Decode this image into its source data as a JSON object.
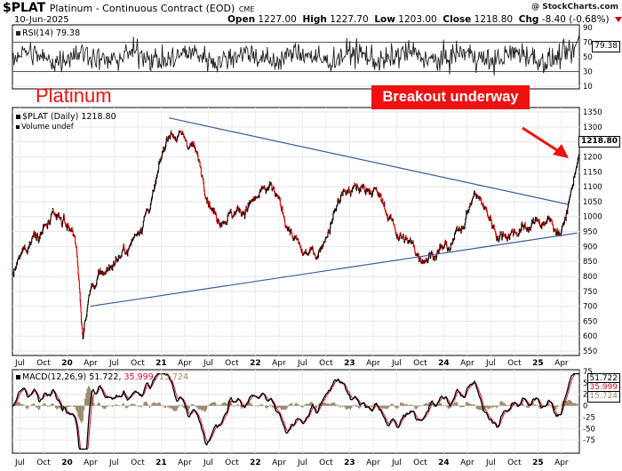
{
  "header": {
    "symbol": "$PLAT",
    "description": "Platinum - Continuous Contract (EOD)",
    "exchange": "CME",
    "credit": "@ StockCharts.com",
    "date": "10-Jun-2025",
    "open_label": "Open",
    "open_value": "1227.00",
    "high_label": "High",
    "high_value": "1227.70",
    "low_label": "Low",
    "low_value": "1203.00",
    "close_label": "Close",
    "close_value": "1218.80",
    "chg_label": "Chg",
    "chg_value": "-8.40 (-0.68%)"
  },
  "annotations": {
    "platinum": "Platinum",
    "breakout": "Breakout underway"
  },
  "colors": {
    "up": "#000000",
    "down": "#cc0000",
    "trendline": "#3b5b9c",
    "rsi_line": "#222222",
    "macd_line": "#000000",
    "signal_line": "#cc1133",
    "histogram": "#9a8a6a",
    "annotation": "#ee1111"
  },
  "chart_data": [
    {
      "type": "line",
      "title": "RSI(14)",
      "legend": "RSI(14) 79.38",
      "last_value": "79.38",
      "ylim": [
        10,
        90
      ],
      "yticks": [
        "90",
        "70",
        "50",
        "30",
        "10"
      ],
      "reference_lines": [
        30,
        70
      ],
      "pill_value": "79.38"
    },
    {
      "type": "line",
      "title": "$PLAT (Daily) 1218.80",
      "legend": [
        "$PLAT (Daily) 1218.80",
        "Volume undef"
      ],
      "ylim": [
        550,
        1350
      ],
      "yticks": [
        "1350",
        "1300",
        "1250",
        "1200",
        "1150",
        "1100",
        "1050",
        "1000",
        "950",
        "900",
        "850",
        "800",
        "750",
        "700",
        "650",
        "600",
        "550"
      ],
      "x_labels": [
        "Jul",
        "Oct",
        "20",
        "Apr",
        "Jul",
        "Oct",
        "21",
        "Apr",
        "Jul",
        "Oct",
        "22",
        "Apr",
        "Jul",
        "Oct",
        "23",
        "Apr",
        "Jul",
        "Oct",
        "24",
        "Apr",
        "Jul",
        "Oct",
        "25",
        "Apr"
      ],
      "last_price": "1218.80",
      "key_points": [
        {
          "date": "2019-06",
          "price": 800
        },
        {
          "date": "2019-09",
          "price": 960
        },
        {
          "date": "2019-12",
          "price": 980
        },
        {
          "date": "2020-02",
          "price": 950
        },
        {
          "date": "2020-03",
          "price": 600
        },
        {
          "date": "2020-04",
          "price": 760
        },
        {
          "date": "2020-07",
          "price": 850
        },
        {
          "date": "2020-09",
          "price": 900
        },
        {
          "date": "2020-12",
          "price": 1070
        },
        {
          "date": "2021-02",
          "price": 1290
        },
        {
          "date": "2021-05",
          "price": 1240
        },
        {
          "date": "2021-08",
          "price": 1000
        },
        {
          "date": "2021-11",
          "price": 1020
        },
        {
          "date": "2022-03",
          "price": 1090
        },
        {
          "date": "2022-07",
          "price": 870
        },
        {
          "date": "2022-09",
          "price": 880
        },
        {
          "date": "2022-12",
          "price": 1080
        },
        {
          "date": "2023-04",
          "price": 1100
        },
        {
          "date": "2023-07",
          "price": 950
        },
        {
          "date": "2023-10",
          "price": 870
        },
        {
          "date": "2024-02",
          "price": 900
        },
        {
          "date": "2024-05",
          "price": 1080
        },
        {
          "date": "2024-08",
          "price": 940
        },
        {
          "date": "2024-11",
          "price": 960
        },
        {
          "date": "2025-02",
          "price": 990
        },
        {
          "date": "2025-04",
          "price": 950
        },
        {
          "date": "2025-05",
          "price": 1050
        },
        {
          "date": "2025-06-10",
          "price": 1218.8
        }
      ],
      "trendlines": [
        {
          "from": {
            "date": "2021-02",
            "price": 1330
          },
          "to": {
            "date": "2025-05",
            "price": 1040
          }
        },
        {
          "from": {
            "date": "2020-04",
            "price": 700
          },
          "to": {
            "date": "2025-06",
            "price": 945
          }
        }
      ]
    },
    {
      "type": "line",
      "title": "MACD(12,26,9)",
      "legend_name": "MACD(12,26,9)",
      "values": {
        "macd": "51.722",
        "signal": "35.999",
        "histogram": "15.724"
      },
      "ylim": [
        -100,
        75
      ],
      "yticks": [
        "75",
        "50",
        "25",
        "0",
        "-25",
        "-50",
        "-75"
      ],
      "x_labels": [
        "Jul",
        "Oct",
        "20",
        "Apr",
        "Jul",
        "Oct",
        "21",
        "Apr",
        "Jul",
        "Oct",
        "22",
        "Apr",
        "Jul",
        "Oct",
        "23",
        "Apr",
        "Jul",
        "Oct",
        "24",
        "Apr",
        "Jul",
        "Oct",
        "25",
        "Apr"
      ]
    }
  ]
}
